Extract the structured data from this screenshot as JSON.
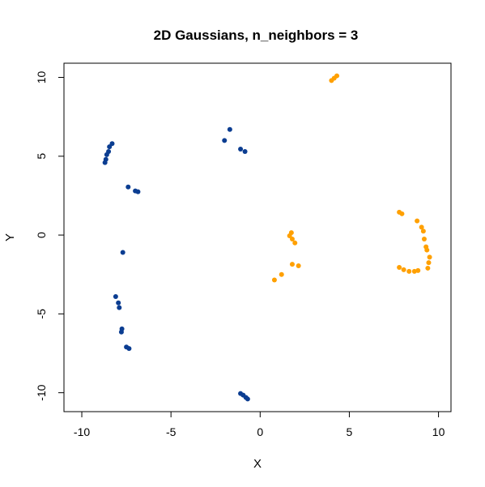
{
  "chart_data": {
    "type": "scatter",
    "title": "2D Gaussians, n_neighbors = 3",
    "xlabel": "X",
    "ylabel": "Y",
    "xlim": [
      -11,
      10.7
    ],
    "ylim": [
      -11.2,
      10.9
    ],
    "xticks": [
      "-10",
      "-5",
      "0",
      "5",
      "10"
    ],
    "yticks": [
      "-10",
      "-5",
      "0",
      "5",
      "10"
    ],
    "grid": false,
    "series": [
      {
        "color": "#0B3D91",
        "points": [
          [
            -8.3,
            5.8
          ],
          [
            -8.45,
            5.6
          ],
          [
            -8.5,
            5.3
          ],
          [
            -8.6,
            5.1
          ],
          [
            -8.65,
            4.8
          ],
          [
            -8.7,
            4.6
          ],
          [
            -7.4,
            3.05
          ],
          [
            -7.0,
            2.8
          ],
          [
            -6.85,
            2.75
          ],
          [
            -2.0,
            6.0
          ],
          [
            -1.7,
            6.7
          ],
          [
            -1.1,
            5.45
          ],
          [
            -0.85,
            5.3
          ],
          [
            -7.7,
            -1.1
          ],
          [
            -8.1,
            -3.9
          ],
          [
            -7.95,
            -4.3
          ],
          [
            -7.9,
            -4.6
          ],
          [
            -7.75,
            -5.95
          ],
          [
            -7.78,
            -6.15
          ],
          [
            -7.5,
            -7.1
          ],
          [
            -7.35,
            -7.2
          ],
          [
            -1.1,
            -10.05
          ],
          [
            -0.95,
            -10.15
          ],
          [
            -0.8,
            -10.3
          ],
          [
            -0.7,
            -10.4
          ]
        ]
      },
      {
        "color": "#FFA000",
        "points": [
          [
            4.0,
            9.8
          ],
          [
            4.15,
            9.95
          ],
          [
            4.3,
            10.1
          ],
          [
            1.65,
            -0.05
          ],
          [
            1.75,
            0.15
          ],
          [
            1.8,
            -0.25
          ],
          [
            1.95,
            -0.5
          ],
          [
            1.8,
            -1.85
          ],
          [
            2.15,
            -1.95
          ],
          [
            0.8,
            -2.85
          ],
          [
            1.2,
            -2.5
          ],
          [
            7.8,
            1.45
          ],
          [
            7.95,
            1.35
          ],
          [
            8.8,
            0.9
          ],
          [
            9.05,
            0.5
          ],
          [
            9.15,
            0.25
          ],
          [
            9.2,
            -0.25
          ],
          [
            9.3,
            -0.75
          ],
          [
            9.35,
            -0.95
          ],
          [
            9.5,
            -1.4
          ],
          [
            9.45,
            -1.75
          ],
          [
            9.4,
            -2.1
          ],
          [
            7.8,
            -2.05
          ],
          [
            8.05,
            -2.2
          ],
          [
            8.35,
            -2.3
          ],
          [
            8.65,
            -2.3
          ],
          [
            8.85,
            -2.25
          ]
        ]
      }
    ]
  }
}
